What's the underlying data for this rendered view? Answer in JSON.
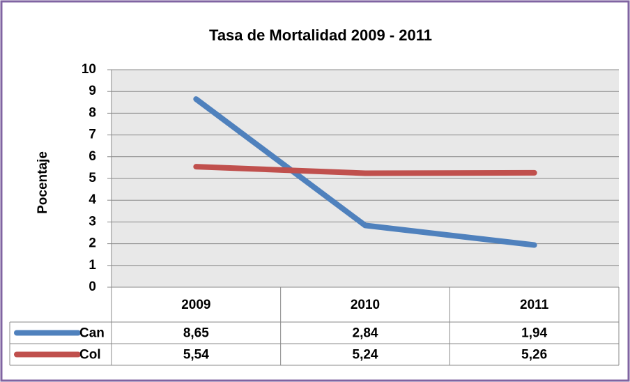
{
  "chart_data": {
    "type": "line",
    "title": "Tasa de Mortalidad 2009 - 2011",
    "y_label": "Pocentaje",
    "categories": [
      "2009",
      "2010",
      "2011"
    ],
    "series": [
      {
        "name": "Can",
        "color": "#4f81bd",
        "values": [
          8.65,
          2.84,
          1.94
        ],
        "value_labels": [
          "8,65",
          "2,84",
          "1,94"
        ]
      },
      {
        "name": "Col",
        "color": "#c0504d",
        "values": [
          5.54,
          5.24,
          5.26
        ],
        "value_labels": [
          "5,54",
          "5,24",
          "5,26"
        ]
      }
    ],
    "ylim": [
      0,
      10
    ],
    "yticks": [
      0,
      1,
      2,
      3,
      4,
      5,
      6,
      7,
      8,
      9,
      10
    ],
    "grid": true,
    "legend": "data-table"
  }
}
